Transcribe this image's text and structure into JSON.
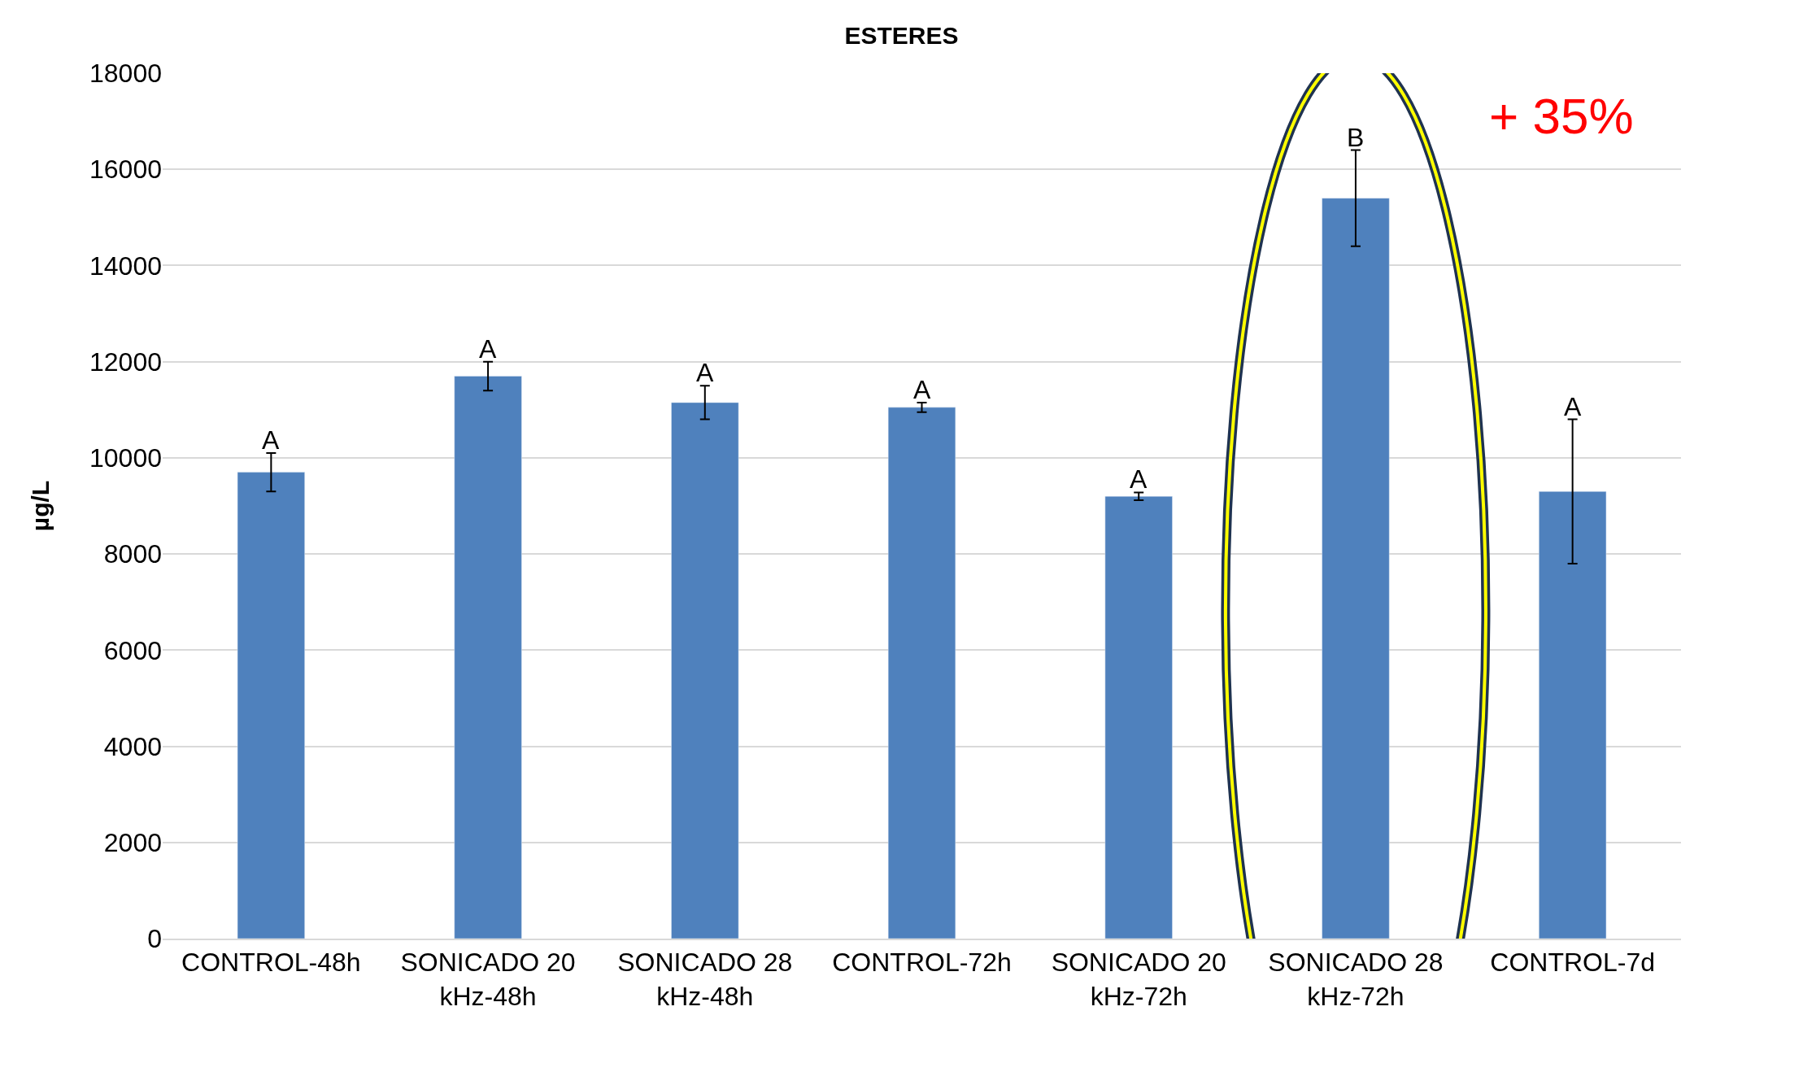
{
  "chart_data": {
    "type": "bar",
    "title": "ESTERES",
    "ylabel": "µg/L",
    "categories": [
      "CONTROL-48h",
      "SONICADO 20 kHz-48h",
      "SONICADO 28 kHz-48h",
      "CONTROL-72h",
      "SONICADO 20 kHz-72h",
      "SONICADO 28 kHz-72h",
      "CONTROL-7d"
    ],
    "values": [
      9700,
      11700,
      11150,
      11050,
      9200,
      15400,
      9300
    ],
    "errors": [
      400,
      300,
      350,
      100,
      80,
      1000,
      1500
    ],
    "color": "#4f81bd",
    "ylim": [
      0,
      18000
    ],
    "yticks": [
      0,
      2000,
      4000,
      6000,
      8000,
      10000,
      12000,
      14000,
      16000,
      18000
    ],
    "grid": "y",
    "annotations": [
      "A",
      "A",
      "A",
      "A",
      "A",
      "B",
      "A",
      "+ 35%"
    ]
  }
}
